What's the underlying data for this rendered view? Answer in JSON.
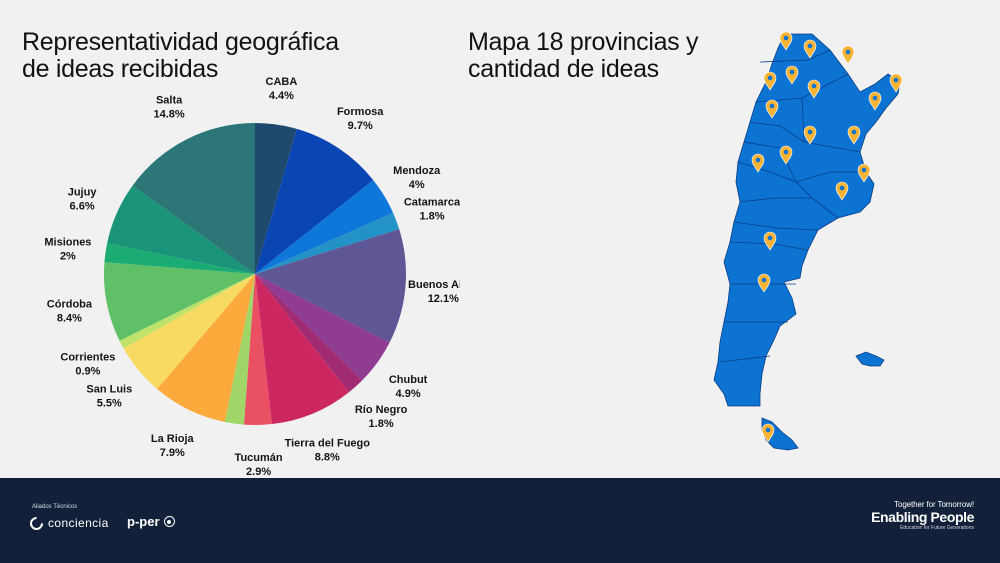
{
  "titles": {
    "pie_line1": "Representatividad geográfica",
    "pie_line2": "de ideas recibidas",
    "map_line1": "Mapa 18 provincias y",
    "map_line2": "cantidad de ideas"
  },
  "chart_data": {
    "type": "pie",
    "title": "Representatividad geográfica de ideas recibidas",
    "slices": [
      {
        "label": "CABA",
        "value": 4.4,
        "display": "4.4%",
        "color": "#1f4a6e"
      },
      {
        "label": "Formosa",
        "value": 9.7,
        "display": "9.7%",
        "color": "#0a45b4"
      },
      {
        "label": "Mendoza",
        "value": 4,
        "display": "4%",
        "color": "#0e77da"
      },
      {
        "label": "Catamarca",
        "value": 1.8,
        "display": "1.8%",
        "color": "#2392c7"
      },
      {
        "label": "Buenos Aires",
        "value": 12.1,
        "display": "12.1%",
        "color": "#5f5795"
      },
      {
        "label": "Chubut",
        "value": 4.9,
        "display": "4.9%",
        "color": "#8f3c92"
      },
      {
        "label": "Río Negro",
        "value": 1.8,
        "display": "1.8%",
        "color": "#a02b73"
      },
      {
        "label": "Tierra del Fuego",
        "value": 8.8,
        "display": "8.8%",
        "color": "#cc2761"
      },
      {
        "label": "Tucumán",
        "value": 2.9,
        "display": "2.9%",
        "color": "#ea5063"
      },
      {
        "label": "",
        "value": 2.0,
        "display": "",
        "color": "#9fd667"
      },
      {
        "label": "La Rioja",
        "value": 7.9,
        "display": "7.9%",
        "color": "#fdaa3c"
      },
      {
        "label": "San Luis",
        "value": 5.5,
        "display": "5.5%",
        "color": "#f6da61"
      },
      {
        "label": "Corrientes",
        "value": 0.9,
        "display": "0.9%",
        "color": "#bfe26a"
      },
      {
        "label": "Córdoba",
        "value": 8.4,
        "display": "8.4%",
        "color": "#5fc068"
      },
      {
        "label": "Misiones",
        "value": 2,
        "display": "2%",
        "color": "#1bac74"
      },
      {
        "label": "Jujuy",
        "value": 6.6,
        "display": "6.6%",
        "color": "#199478"
      },
      {
        "label": "Salta",
        "value": 14.8,
        "display": "14.8%",
        "color": "#2c7678"
      }
    ]
  },
  "map": {
    "fill_color": "#0c73d3",
    "border_color": "#0a3e86",
    "marker_color": "#f6b334",
    "marker_count": 18
  },
  "footer": {
    "allies_label": "Aliados Técnicos",
    "conciencia": "conciencia",
    "pper": "p-per",
    "tagline": "Together for Tomorrow!",
    "brand": "Enabling People",
    "brand_sub": "Education for Future Generations"
  }
}
